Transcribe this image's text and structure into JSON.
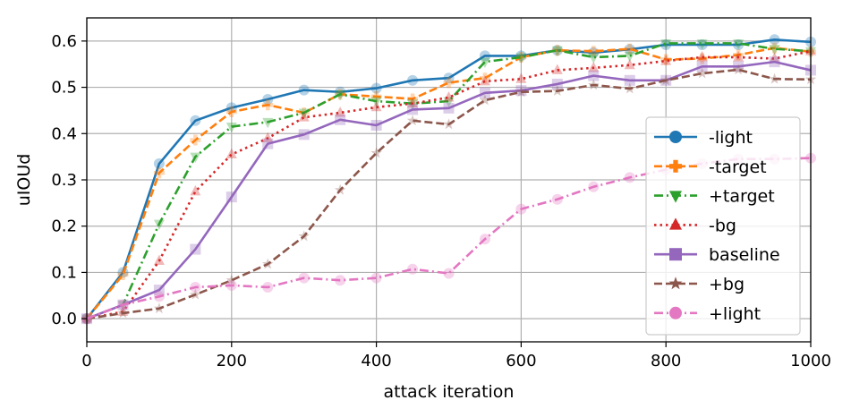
{
  "chart_data": {
    "type": "line",
    "title": "",
    "xlabel": "attack iteration",
    "ylabel": "uIOUd",
    "xlim": [
      0,
      1000
    ],
    "ylim": [
      -0.05,
      0.65
    ],
    "xticks": [
      0,
      200,
      400,
      600,
      800,
      1000
    ],
    "yticks": [
      0.0,
      0.1,
      0.2,
      0.3,
      0.4,
      0.5,
      0.6
    ],
    "xtick_labels": [
      "0",
      "200",
      "400",
      "600",
      "800",
      "1000"
    ],
    "ytick_labels": [
      "0.0",
      "0.1",
      "0.2",
      "0.3",
      "0.4",
      "0.5",
      "0.6"
    ],
    "grid": true,
    "legend_position": "right",
    "x": [
      0,
      50,
      100,
      150,
      200,
      250,
      300,
      350,
      400,
      450,
      500,
      550,
      600,
      650,
      700,
      750,
      800,
      850,
      900,
      950,
      1000
    ],
    "series": [
      {
        "name": "-light",
        "color": "#1f77b4",
        "dash": "solid",
        "marker": "circle",
        "values": [
          0.0,
          0.1,
          0.335,
          0.428,
          0.456,
          0.474,
          0.494,
          0.49,
          0.498,
          0.515,
          0.52,
          0.568,
          0.568,
          0.58,
          0.575,
          0.582,
          0.592,
          0.592,
          0.592,
          0.603,
          0.598
        ]
      },
      {
        "name": "-target",
        "color": "#ff7f0e",
        "dash": "dashed",
        "marker": "plus",
        "values": [
          0.0,
          0.095,
          0.315,
          0.386,
          0.447,
          0.462,
          0.445,
          0.485,
          0.48,
          0.475,
          0.51,
          0.52,
          0.565,
          0.58,
          0.578,
          0.583,
          0.56,
          0.562,
          0.57,
          0.585,
          0.577
        ]
      },
      {
        "name": "+target",
        "color": "#2ca02c",
        "dash": "dashdot",
        "marker": "triangle-down",
        "values": [
          0.0,
          0.03,
          0.205,
          0.35,
          0.415,
          0.425,
          0.445,
          0.485,
          0.47,
          0.465,
          0.47,
          0.555,
          0.565,
          0.58,
          0.565,
          0.568,
          0.595,
          0.595,
          0.595,
          0.583,
          0.578
        ]
      },
      {
        "name": "-bg",
        "color": "#d62728",
        "dash": "dotted",
        "marker": "triangle-up",
        "values": [
          0.0,
          0.015,
          0.125,
          0.275,
          0.355,
          0.39,
          0.435,
          0.445,
          0.457,
          0.465,
          0.478,
          0.513,
          0.518,
          0.537,
          0.542,
          0.548,
          0.557,
          0.565,
          0.565,
          0.562,
          0.578
        ]
      },
      {
        "name": "baseline",
        "color": "#9467bd",
        "dash": "solid",
        "marker": "square",
        "values": [
          0.0,
          0.03,
          0.062,
          0.15,
          0.263,
          0.378,
          0.398,
          0.43,
          0.418,
          0.452,
          0.455,
          0.488,
          0.493,
          0.507,
          0.525,
          0.515,
          0.515,
          0.545,
          0.545,
          0.555,
          0.537
        ]
      },
      {
        "name": "+bg",
        "color": "#8c564b",
        "dash": "dashed",
        "marker": "star",
        "values": [
          0.0,
          0.012,
          0.022,
          0.052,
          0.083,
          0.118,
          0.178,
          0.278,
          0.358,
          0.428,
          0.42,
          0.472,
          0.49,
          0.492,
          0.505,
          0.497,
          0.515,
          0.53,
          0.538,
          0.518,
          0.517
        ]
      },
      {
        "name": "+light",
        "color": "#e377c2",
        "dash": "dashdot",
        "marker": "circle",
        "values": [
          0.0,
          0.03,
          0.048,
          0.068,
          0.072,
          0.068,
          0.088,
          0.083,
          0.088,
          0.107,
          0.098,
          0.172,
          0.237,
          0.258,
          0.285,
          0.305,
          0.322,
          0.335,
          0.345,
          0.345,
          0.347
        ]
      }
    ]
  }
}
